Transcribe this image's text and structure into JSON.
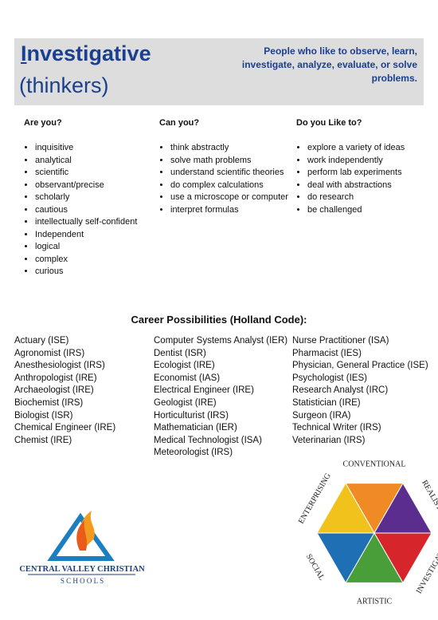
{
  "header": {
    "title": "Investigative",
    "subtitle": "(thinkers)",
    "description": "People who like to observe, learn, investigate, analyze, evaluate, or solve problems."
  },
  "columns": [
    {
      "heading": "Are you?",
      "items": [
        "inquisitive",
        "analytical",
        "scientific",
        "observant/precise",
        "scholarly",
        "cautious",
        "intellectually self-confident",
        "Independent",
        "logical",
        "complex",
        "curious"
      ]
    },
    {
      "heading": "Can you?",
      "items": [
        "think abstractly",
        "solve math problems",
        "understand scientific theories",
        "do complex calculations",
        "use a microscope or computer",
        "interpret formulas"
      ]
    },
    {
      "heading": "Do you Like to?",
      "items": [
        "explore a variety of ideas",
        "work independently",
        "perform lab experiments",
        "deal with abstractions",
        "do research",
        "be challenged"
      ]
    }
  ],
  "careers": {
    "heading": "Career Possibilities (Holland Code):",
    "columns": [
      [
        "Actuary (ISE)",
        "Agronomist (IRS)",
        "Anesthesiologist (IRS)",
        "Anthropologist (IRE)",
        "Archaeologist (IRE)",
        "Biochemist (IRS)",
        "Biologist (ISR)",
        "Chemical Engineer (IRE)",
        "Chemist (IRE)"
      ],
      [
        "Computer Systems Analyst (IER)",
        "Dentist (ISR)",
        "Ecologist (IRE)",
        "Economist (IAS)",
        "Electrical Engineer (IRE)",
        "Geologist (IRE)",
        "Horticulturist (IRS)",
        "Mathematician (IER)",
        "Medical Technologist (ISA)",
        "Meteorologist (IRS)"
      ],
      [
        "Nurse Practitioner (ISA)",
        "Pharmacist (IES)",
        "Physician, General Practice (ISE)",
        "Psychologist (IES)",
        "Research Analyst (IRC)",
        "Statistician (IRE)",
        "Surgeon (IRA)",
        "Technical Writer (IRS)",
        "Veterinarian (IRS)"
      ]
    ]
  },
  "logo": {
    "name": "CENTRAL VALLEY CHRISTIAN",
    "sub": "S C H O O L S"
  },
  "hexagon": {
    "labels": [
      "CONVENTIONAL",
      "REALISTIC",
      "INVESTIGATIVE",
      "ARTISTIC",
      "SOCIAL",
      "ENTERPRISING"
    ]
  }
}
